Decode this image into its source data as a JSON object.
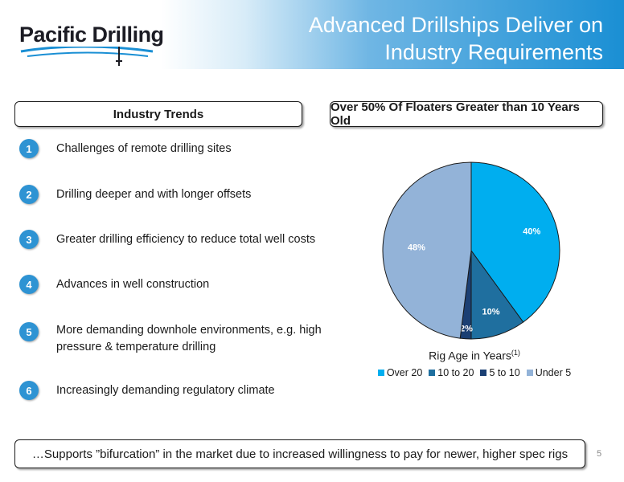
{
  "header": {
    "logo_text": "Pacific Drilling",
    "title_line1": "Advanced Drillships Deliver on",
    "title_line2": "Industry Requirements"
  },
  "left_panel": {
    "heading": "Industry Trends",
    "items": [
      {
        "num": "1",
        "text": "Challenges of remote drilling sites"
      },
      {
        "num": "2",
        "text": "Drilling deeper and with longer offsets"
      },
      {
        "num": "3",
        "text": "Greater drilling efficiency to reduce total well costs"
      },
      {
        "num": "4",
        "text": "Advances in well construction"
      },
      {
        "num": "5",
        "text": "More demanding downhole environments, e.g. high pressure & temperature drilling"
      },
      {
        "num": "6",
        "text": "Increasingly demanding regulatory climate"
      }
    ]
  },
  "right_panel": {
    "heading": "Over 50% Of Floaters Greater than 10 Years Old",
    "caption": "Rig Age in Years",
    "caption_sup": "(1)"
  },
  "chart_data": {
    "type": "pie",
    "categories": [
      "Over 20",
      "10 to 20",
      "5 to 10",
      "Under 5"
    ],
    "values": [
      40,
      10,
      2,
      48
    ],
    "labels": [
      "40%",
      "10%",
      "2%",
      "48%"
    ],
    "colors": [
      "#00aeef",
      "#1f6f9f",
      "#1b3f73",
      "#93b3d8"
    ],
    "title": "",
    "legend_position": "bottom"
  },
  "footer": {
    "message": "…Supports ”bifurcation” in the market due to increased willingness to pay for newer, higher spec rigs",
    "page_number": "5"
  }
}
